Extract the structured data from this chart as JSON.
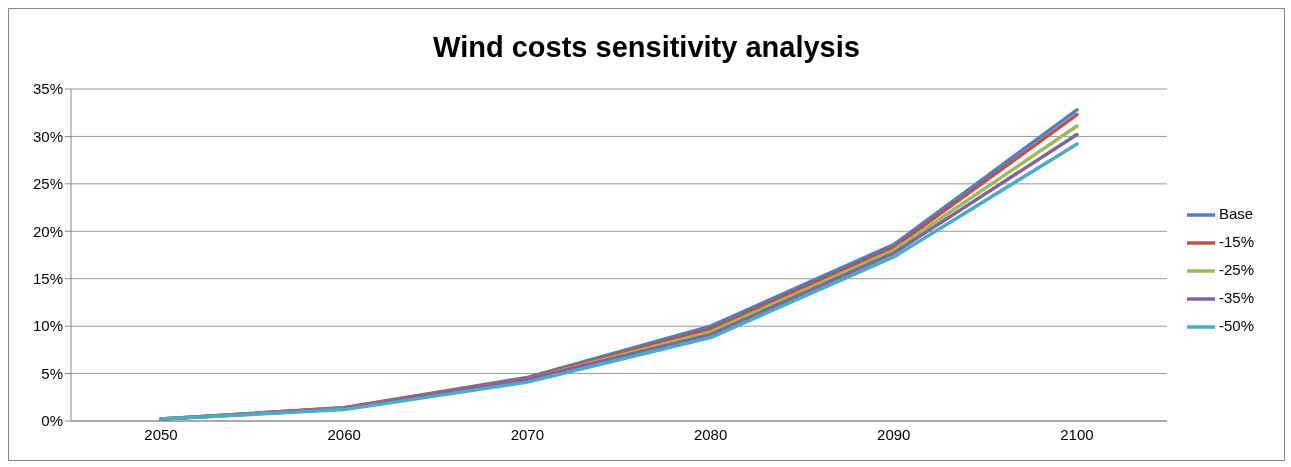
{
  "chart_data": {
    "type": "line",
    "title": "Wind costs sensitivity analysis",
    "categories": [
      "2050",
      "2060",
      "2070",
      "2080",
      "2090",
      "2100"
    ],
    "series": [
      {
        "name": "Base",
        "color": "#4f81bd",
        "values": [
          0.2,
          1.4,
          4.6,
          10.0,
          18.6,
          32.8
        ]
      },
      {
        "name": "-15%",
        "color": "#c0504d",
        "values": [
          0.2,
          1.4,
          4.5,
          9.7,
          18.3,
          32.3
        ]
      },
      {
        "name": "-25%",
        "color": "#9bbb59",
        "values": [
          0.2,
          1.3,
          4.4,
          9.4,
          18.0,
          31.1
        ]
      },
      {
        "name": "-35%",
        "color": "#8064a2",
        "values": [
          0.2,
          1.3,
          4.4,
          9.1,
          17.7,
          30.2
        ]
      },
      {
        "name": "-50%",
        "color": "#4bacc6",
        "values": [
          0.2,
          1.2,
          4.1,
          8.8,
          17.3,
          29.2
        ]
      }
    ],
    "ylim": [
      0,
      35
    ],
    "yticks": [
      {
        "value": 0,
        "label": "0%"
      },
      {
        "value": 5,
        "label": "5%"
      },
      {
        "value": 10,
        "label": "10%"
      },
      {
        "value": 15,
        "label": "15%"
      },
      {
        "value": 20,
        "label": "20%"
      },
      {
        "value": 25,
        "label": "25%"
      },
      {
        "value": 30,
        "label": "30%"
      },
      {
        "value": 35,
        "label": "35%"
      }
    ],
    "grid": "y",
    "legend": "right",
    "marker": "none",
    "line_style": "solid"
  }
}
